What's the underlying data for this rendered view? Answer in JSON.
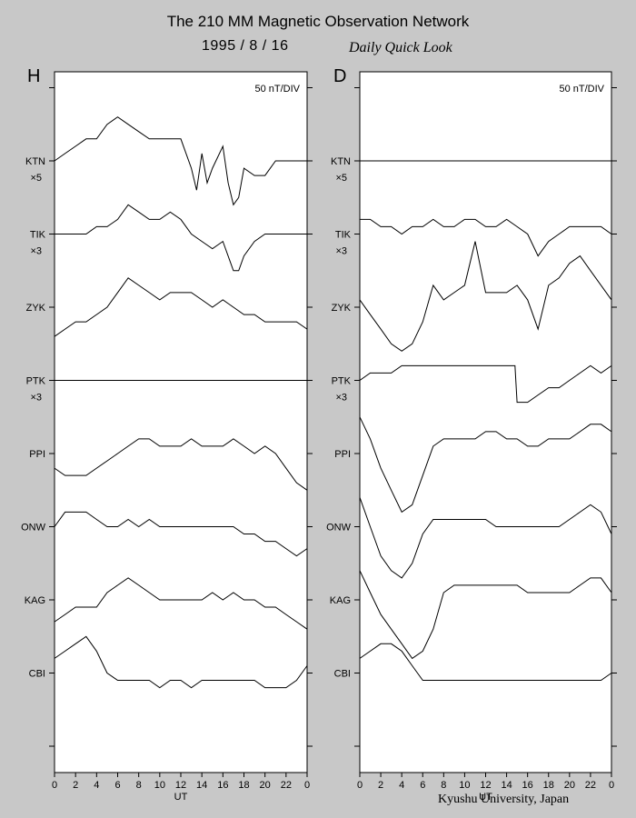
{
  "header": {
    "title": "The 210 MM Magnetic Observation Network",
    "date": "1995  /   8  /  16",
    "subtitle": "Daily Quick Look"
  },
  "footer": "Kyushu University, Japan",
  "chart_data": [
    {
      "type": "line",
      "panel": "H",
      "scale_label": "50 nT/DIV",
      "xlabel": "UT",
      "xlim": [
        0,
        24
      ],
      "x_ticks": [
        "0",
        "2",
        "4",
        "6",
        "8",
        "10",
        "12",
        "14",
        "16",
        "18",
        "20",
        "22",
        "0"
      ],
      "stations": [
        {
          "name": "KTN",
          "multiplier": "×5"
        },
        {
          "name": "TIK",
          "multiplier": "×3"
        },
        {
          "name": "ZYK",
          "multiplier": ""
        },
        {
          "name": "PTK",
          "multiplier": "×3"
        },
        {
          "name": "PPI",
          "multiplier": ""
        },
        {
          "name": "ONW",
          "multiplier": ""
        },
        {
          "name": "KAG",
          "multiplier": ""
        },
        {
          "name": "CBI",
          "multiplier": ""
        }
      ],
      "series": [
        {
          "name": "KTN",
          "x": [
            0,
            1,
            2,
            3,
            4,
            5,
            6,
            7,
            8,
            9,
            10,
            11,
            12,
            13,
            13.5,
            14,
            14.5,
            15,
            16,
            16.5,
            17,
            17.5,
            18,
            19,
            20,
            21,
            22,
            23,
            24
          ],
          "y": [
            0.0,
            0.1,
            0.2,
            0.3,
            0.3,
            0.5,
            0.6,
            0.5,
            0.4,
            0.3,
            0.3,
            0.3,
            0.3,
            -0.1,
            -0.4,
            0.1,
            -0.3,
            -0.1,
            0.2,
            -0.3,
            -0.6,
            -0.5,
            -0.1,
            -0.2,
            -0.2,
            0.0,
            0.0,
            0.0,
            0.0
          ]
        },
        {
          "name": "TIK",
          "x": [
            0,
            1,
            2,
            3,
            4,
            5,
            6,
            7,
            8,
            9,
            10,
            11,
            12,
            13,
            14,
            15,
            16,
            17,
            17.5,
            18,
            19,
            20,
            21,
            22,
            23,
            24
          ],
          "y": [
            0.0,
            0.0,
            0.0,
            0.0,
            0.1,
            0.1,
            0.2,
            0.4,
            0.3,
            0.2,
            0.2,
            0.3,
            0.2,
            0.0,
            -0.1,
            -0.2,
            -0.1,
            -0.5,
            -0.5,
            -0.3,
            -0.1,
            0.0,
            0.0,
            0.0,
            0.0,
            0.0
          ]
        },
        {
          "name": "ZYK",
          "x": [
            0,
            1,
            2,
            3,
            4,
            5,
            6,
            7,
            8,
            9,
            10,
            11,
            12,
            13,
            14,
            15,
            16,
            17,
            18,
            19,
            20,
            21,
            22,
            23,
            24
          ],
          "y": [
            -0.4,
            -0.3,
            -0.2,
            -0.2,
            -0.1,
            0.0,
            0.2,
            0.4,
            0.3,
            0.2,
            0.1,
            0.2,
            0.2,
            0.2,
            0.1,
            0.0,
            0.1,
            0.0,
            -0.1,
            -0.1,
            -0.2,
            -0.2,
            -0.2,
            -0.2,
            -0.3
          ]
        },
        {
          "name": "PTK",
          "x": [
            0,
            24
          ],
          "y": [
            0.0,
            0.0
          ]
        },
        {
          "name": "PPI",
          "x": [
            0,
            1,
            2,
            3,
            4,
            5,
            6,
            7,
            8,
            9,
            10,
            11,
            12,
            13,
            14,
            15,
            16,
            17,
            18,
            19,
            20,
            21,
            22,
            23,
            24
          ],
          "y": [
            -0.2,
            -0.3,
            -0.3,
            -0.3,
            -0.2,
            -0.1,
            0.0,
            0.1,
            0.2,
            0.2,
            0.1,
            0.1,
            0.1,
            0.2,
            0.1,
            0.1,
            0.1,
            0.2,
            0.1,
            0.0,
            0.1,
            0.0,
            -0.2,
            -0.4,
            -0.5
          ]
        },
        {
          "name": "ONW",
          "x": [
            0,
            1,
            2,
            3,
            4,
            5,
            6,
            7,
            8,
            9,
            10,
            11,
            12,
            13,
            14,
            15,
            16,
            17,
            18,
            19,
            20,
            21,
            22,
            23,
            24
          ],
          "y": [
            0.0,
            0.2,
            0.2,
            0.2,
            0.1,
            0.0,
            0.0,
            0.1,
            0.0,
            0.1,
            0.0,
            0.0,
            0.0,
            0.0,
            0.0,
            0.0,
            0.0,
            0.0,
            -0.1,
            -0.1,
            -0.2,
            -0.2,
            -0.3,
            -0.4,
            -0.3
          ]
        },
        {
          "name": "KAG",
          "x": [
            0,
            1,
            2,
            3,
            4,
            5,
            6,
            7,
            8,
            9,
            10,
            11,
            12,
            13,
            14,
            15,
            16,
            17,
            18,
            19,
            20,
            21,
            22,
            23,
            24
          ],
          "y": [
            -0.3,
            -0.2,
            -0.1,
            -0.1,
            -0.1,
            0.1,
            0.2,
            0.3,
            0.2,
            0.1,
            0.0,
            0.0,
            0.0,
            0.0,
            0.0,
            0.1,
            0.0,
            0.1,
            0.0,
            0.0,
            -0.1,
            -0.1,
            -0.2,
            -0.3,
            -0.4
          ]
        },
        {
          "name": "CBI",
          "x": [
            0,
            1,
            2,
            3,
            4,
            5,
            6,
            7,
            8,
            9,
            10,
            11,
            12,
            13,
            14,
            15,
            16,
            17,
            18,
            19,
            20,
            21,
            22,
            23,
            24
          ],
          "y": [
            0.2,
            0.3,
            0.4,
            0.5,
            0.3,
            0.0,
            -0.1,
            -0.1,
            -0.1,
            -0.1,
            -0.2,
            -0.1,
            -0.1,
            -0.2,
            -0.1,
            -0.1,
            -0.1,
            -0.1,
            -0.1,
            -0.1,
            -0.2,
            -0.2,
            -0.2,
            -0.1,
            0.1
          ]
        }
      ]
    },
    {
      "type": "line",
      "panel": "D",
      "scale_label": "50 nT/DIV",
      "xlabel": "UT",
      "xlim": [
        0,
        24
      ],
      "x_ticks": [
        "0",
        "2",
        "4",
        "6",
        "8",
        "10",
        "12",
        "14",
        "16",
        "18",
        "20",
        "22",
        "0"
      ],
      "stations": [
        {
          "name": "KTN",
          "multiplier": "×5"
        },
        {
          "name": "TIK",
          "multiplier": "×3"
        },
        {
          "name": "ZYK",
          "multiplier": ""
        },
        {
          "name": "PTK",
          "multiplier": "×3"
        },
        {
          "name": "PPI",
          "multiplier": ""
        },
        {
          "name": "ONW",
          "multiplier": ""
        },
        {
          "name": "KAG",
          "multiplier": ""
        },
        {
          "name": "CBI",
          "multiplier": ""
        }
      ],
      "series": [
        {
          "name": "KTN",
          "x": [
            0,
            24
          ],
          "y": [
            0.0,
            0.0
          ]
        },
        {
          "name": "TIK",
          "x": [
            0,
            1,
            2,
            3,
            4,
            5,
            6,
            7,
            8,
            9,
            10,
            11,
            12,
            13,
            14,
            15,
            16,
            17,
            18,
            19,
            20,
            21,
            22,
            23,
            24
          ],
          "y": [
            0.2,
            0.2,
            0.1,
            0.1,
            0.0,
            0.1,
            0.1,
            0.2,
            0.1,
            0.1,
            0.2,
            0.2,
            0.1,
            0.1,
            0.2,
            0.1,
            0.0,
            -0.3,
            -0.1,
            0.0,
            0.1,
            0.1,
            0.1,
            0.1,
            0.0
          ]
        },
        {
          "name": "ZYK",
          "x": [
            0,
            1,
            2,
            3,
            4,
            5,
            6,
            7,
            8,
            9,
            10,
            11,
            12,
            13,
            14,
            15,
            16,
            17,
            18,
            19,
            20,
            21,
            22,
            23,
            24
          ],
          "y": [
            0.1,
            -0.1,
            -0.3,
            -0.5,
            -0.6,
            -0.5,
            -0.2,
            0.3,
            0.1,
            0.2,
            0.3,
            0.9,
            0.2,
            0.2,
            0.2,
            0.3,
            0.1,
            -0.3,
            0.3,
            0.4,
            0.6,
            0.7,
            0.5,
            0.3,
            0.1
          ]
        },
        {
          "name": "PTK",
          "x": [
            0,
            1,
            2,
            3,
            4,
            5,
            6,
            8,
            10,
            12,
            14,
            14.8,
            15,
            15.5,
            16,
            17,
            18,
            19,
            20,
            21,
            22,
            23,
            24
          ],
          "y": [
            0.0,
            0.1,
            0.1,
            0.1,
            0.2,
            0.2,
            0.2,
            0.2,
            0.2,
            0.2,
            0.2,
            0.2,
            -0.3,
            -0.3,
            -0.3,
            -0.2,
            -0.1,
            -0.1,
            0.0,
            0.1,
            0.2,
            0.1,
            0.2
          ]
        },
        {
          "name": "PPI",
          "x": [
            0,
            1,
            2,
            3,
            4,
            5,
            6,
            7,
            8,
            9,
            10,
            11,
            12,
            13,
            14,
            15,
            16,
            17,
            18,
            19,
            20,
            21,
            22,
            23,
            24
          ],
          "y": [
            0.5,
            0.2,
            -0.2,
            -0.5,
            -0.8,
            -0.7,
            -0.3,
            0.1,
            0.2,
            0.2,
            0.2,
            0.2,
            0.3,
            0.3,
            0.2,
            0.2,
            0.1,
            0.1,
            0.2,
            0.2,
            0.2,
            0.3,
            0.4,
            0.4,
            0.3
          ]
        },
        {
          "name": "ONW",
          "x": [
            0,
            1,
            2,
            3,
            4,
            5,
            6,
            7,
            8,
            9,
            10,
            11,
            12,
            13,
            14,
            15,
            16,
            17,
            18,
            19,
            20,
            21,
            22,
            23,
            24
          ],
          "y": [
            0.4,
            0.0,
            -0.4,
            -0.6,
            -0.7,
            -0.5,
            -0.1,
            0.1,
            0.1,
            0.1,
            0.1,
            0.1,
            0.1,
            0.0,
            0.0,
            0.0,
            0.0,
            0.0,
            0.0,
            0.0,
            0.1,
            0.2,
            0.3,
            0.2,
            -0.1
          ]
        },
        {
          "name": "KAG",
          "x": [
            0,
            1,
            2,
            3,
            4,
            5,
            6,
            7,
            8,
            9,
            10,
            11,
            12,
            13,
            14,
            15,
            16,
            17,
            18,
            19,
            20,
            21,
            22,
            23,
            24
          ],
          "y": [
            0.4,
            0.1,
            -0.2,
            -0.4,
            -0.6,
            -0.8,
            -0.7,
            -0.4,
            0.1,
            0.2,
            0.2,
            0.2,
            0.2,
            0.2,
            0.2,
            0.2,
            0.1,
            0.1,
            0.1,
            0.1,
            0.1,
            0.2,
            0.3,
            0.3,
            0.1
          ]
        },
        {
          "name": "CBI",
          "x": [
            0,
            1,
            2,
            3,
            4,
            5,
            6,
            7,
            8,
            9,
            10,
            11,
            12,
            13,
            14,
            15,
            16,
            17,
            18,
            19,
            20,
            21,
            22,
            23,
            24
          ],
          "y": [
            0.2,
            0.3,
            0.4,
            0.4,
            0.3,
            0.1,
            -0.1,
            -0.1,
            -0.1,
            -0.1,
            -0.1,
            -0.1,
            -0.1,
            -0.1,
            -0.1,
            -0.1,
            -0.1,
            -0.1,
            -0.1,
            -0.1,
            -0.1,
            -0.1,
            -0.1,
            -0.1,
            0.0
          ]
        }
      ]
    }
  ]
}
